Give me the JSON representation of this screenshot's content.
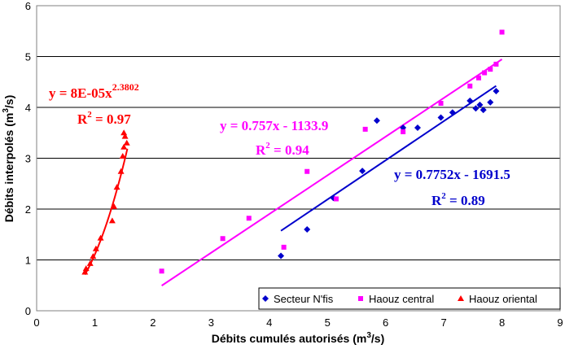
{
  "chart_data": {
    "type": "scatter",
    "xlabel": "Débits cumulés autorisés (m",
    "xlabel_sup": "3",
    "xlabel_end": "/s)",
    "ylabel": "Débits interpolés (m",
    "ylabel_sup": "3",
    "ylabel_end": "/s)",
    "xlim": [
      0,
      9
    ],
    "ylim": [
      0,
      6
    ],
    "x_ticks": [
      "0",
      "1",
      "2",
      "3",
      "4",
      "5",
      "6",
      "7",
      "8",
      "9"
    ],
    "y_ticks": [
      "0",
      "1",
      "2",
      "3",
      "4",
      "5",
      "6"
    ],
    "grid": "horizontal",
    "legend_position": "bottom-right",
    "series": [
      {
        "name": "Secteur N'fis",
        "marker": "diamond",
        "color": "#0000cc",
        "points": [
          [
            4.2,
            1.08
          ],
          [
            4.65,
            1.6
          ],
          [
            5.1,
            2.22
          ],
          [
            5.6,
            2.75
          ],
          [
            5.85,
            3.74
          ],
          [
            6.3,
            3.6
          ],
          [
            6.55,
            3.6
          ],
          [
            6.95,
            3.8
          ],
          [
            7.15,
            3.9
          ],
          [
            7.45,
            4.13
          ],
          [
            7.55,
            3.98
          ],
          [
            7.62,
            4.05
          ],
          [
            7.68,
            3.95
          ],
          [
            7.8,
            4.1
          ],
          [
            7.9,
            4.32
          ]
        ],
        "fit": {
          "kind": "linear",
          "x_range": [
            4.2,
            7.9
          ]
        }
      },
      {
        "name": "Haouz central",
        "marker": "square",
        "color": "#ff00ff",
        "points": [
          [
            2.15,
            0.78
          ],
          [
            3.2,
            1.42
          ],
          [
            3.65,
            1.82
          ],
          [
            4.25,
            1.25
          ],
          [
            4.65,
            2.74
          ],
          [
            5.15,
            2.2
          ],
          [
            5.65,
            3.57
          ],
          [
            6.3,
            3.52
          ],
          [
            6.95,
            4.08
          ],
          [
            7.45,
            4.42
          ],
          [
            7.6,
            4.58
          ],
          [
            7.7,
            4.68
          ],
          [
            7.8,
            4.75
          ],
          [
            7.9,
            4.85
          ],
          [
            8.0,
            5.48
          ]
        ],
        "fit": {
          "kind": "linear",
          "x_range": [
            2.15,
            8.0
          ]
        }
      },
      {
        "name": "Haouz oriental",
        "marker": "triangle",
        "color": "#ff0000",
        "points": [
          [
            0.83,
            0.76
          ],
          [
            0.85,
            0.83
          ],
          [
            0.92,
            0.93
          ],
          [
            0.97,
            1.07
          ],
          [
            1.02,
            1.22
          ],
          [
            1.1,
            1.43
          ],
          [
            1.3,
            1.77
          ],
          [
            1.33,
            2.05
          ],
          [
            1.38,
            2.43
          ],
          [
            1.45,
            2.74
          ],
          [
            1.48,
            3.04
          ],
          [
            1.5,
            3.22
          ],
          [
            1.52,
            3.43
          ],
          [
            1.5,
            3.5
          ],
          [
            1.55,
            3.3
          ]
        ],
        "fit": {
          "kind": "power",
          "coef": 8e-05,
          "exp": 2.3802,
          "x_range": [
            0.83,
            1.56
          ]
        }
      }
    ],
    "annotations": [
      {
        "id": "red",
        "color": "#ff0000",
        "eq_base": "y = 8E-05x",
        "eq_sup": "2.3802",
        "r2_base": "R",
        "r2_sup": "2",
        "r2_end": " = 0.97"
      },
      {
        "id": "magenta",
        "color": "#ff00ff",
        "eq_base": "y = 0.757x - 1133.9",
        "r2_base": "R",
        "r2_sup": "2",
        "r2_end": " = 0.94"
      },
      {
        "id": "blue",
        "color": "#0000cc",
        "eq_base": "y = 0.7752x - 1691.5",
        "r2_base": "R",
        "r2_sup": "2",
        "r2_end": " = 0.89"
      }
    ]
  }
}
